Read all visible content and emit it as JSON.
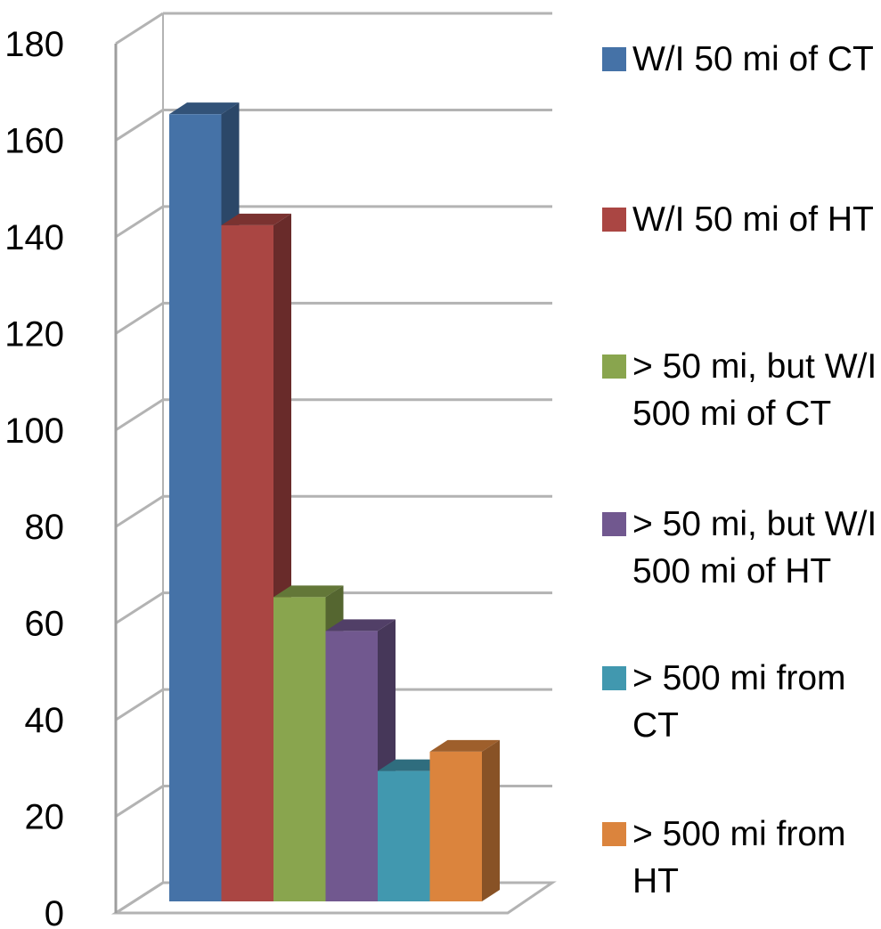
{
  "chart_data": {
    "type": "bar",
    "title": "",
    "xlabel": "",
    "ylabel": "",
    "ylim": [
      0,
      180
    ],
    "y_ticks": [
      "0",
      "20",
      "40",
      "60",
      "80",
      "100",
      "120",
      "140",
      "160",
      "180"
    ],
    "grid": true,
    "three_d": true,
    "legend_position": "right",
    "series": [
      {
        "name": "W/I 50 mi of CT",
        "values": [
          163
        ],
        "color": "#4572A7"
      },
      {
        "name": "W/I 50 mi of HT",
        "values": [
          140
        ],
        "color": "#AA4643"
      },
      {
        "name": "> 50 mi, but W/I 500 mi of CT",
        "values": [
          63
        ],
        "color": "#89A54E"
      },
      {
        "name": "> 50 mi, but W/I 500 mi of HT",
        "values": [
          56
        ],
        "color": "#71588F"
      },
      {
        "name": "> 500 mi from CT",
        "values": [
          27
        ],
        "color": "#4198AF"
      },
      {
        "name": "> 500 mi from HT",
        "values": [
          31
        ],
        "color": "#DB843D"
      }
    ]
  }
}
